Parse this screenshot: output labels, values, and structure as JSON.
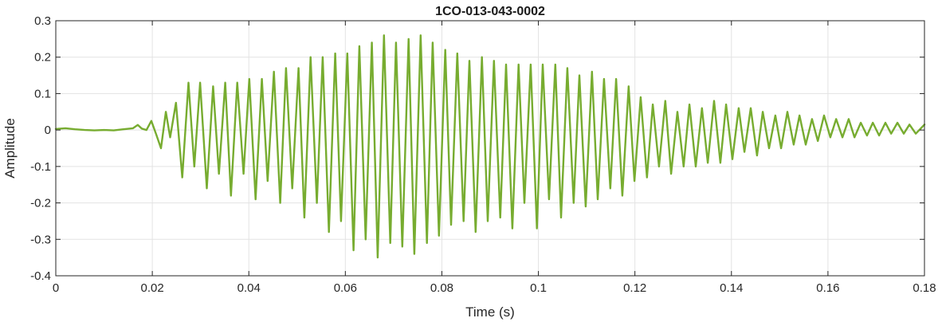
{
  "chart_data": {
    "type": "line",
    "title": "1CO-013-043-0002",
    "xlabel": "Time (s)",
    "ylabel": "Amplitude",
    "xlim": [
      0,
      0.18
    ],
    "ylim": [
      -0.4,
      0.3
    ],
    "grid": true,
    "x_ticks": [
      {
        "value": 0,
        "label": "0"
      },
      {
        "value": 0.02,
        "label": "0.02"
      },
      {
        "value": 0.04,
        "label": "0.04"
      },
      {
        "value": 0.06,
        "label": "0.06"
      },
      {
        "value": 0.08,
        "label": "0.08"
      },
      {
        "value": 0.1,
        "label": "0.1"
      },
      {
        "value": 0.12,
        "label": "0.12"
      },
      {
        "value": 0.14,
        "label": "0.14"
      },
      {
        "value": 0.16,
        "label": "0.16"
      },
      {
        "value": 0.18,
        "label": "0.18"
      }
    ],
    "y_ticks": [
      {
        "value": 0.3,
        "label": "0.3"
      },
      {
        "value": 0.2,
        "label": "0.2"
      },
      {
        "value": 0.1,
        "label": "0.1"
      },
      {
        "value": 0,
        "label": "0"
      },
      {
        "value": -0.1,
        "label": "-0.1"
      },
      {
        "value": -0.2,
        "label": "-0.2"
      },
      {
        "value": -0.3,
        "label": "-0.3"
      },
      {
        "value": -0.4,
        "label": "-0.4"
      }
    ],
    "series": [
      {
        "color": "#77ac30",
        "x": [
          0.0,
          0.002,
          0.004,
          0.006,
          0.008,
          0.01,
          0.012,
          0.014,
          0.016,
          0.017,
          0.0178,
          0.0188,
          0.0198,
          0.0208,
          0.0218,
          0.0228,
          0.0237,
          0.0249,
          0.0262,
          0.0275,
          0.0287,
          0.0299,
          0.0313,
          0.0326,
          0.0338,
          0.0351,
          0.0363,
          0.0376,
          0.0389,
          0.0401,
          0.0414,
          0.0427,
          0.0439,
          0.0452,
          0.0465,
          0.0477,
          0.049,
          0.0503,
          0.0515,
          0.0528,
          0.0541,
          0.0553,
          0.0566,
          0.0579,
          0.0591,
          0.0604,
          0.0617,
          0.0629,
          0.0642,
          0.0655,
          0.0667,
          0.068,
          0.0693,
          0.0705,
          0.0718,
          0.0731,
          0.0743,
          0.0756,
          0.0769,
          0.0781,
          0.0794,
          0.0807,
          0.0819,
          0.0832,
          0.0845,
          0.0857,
          0.087,
          0.0883,
          0.0895,
          0.0908,
          0.0921,
          0.0933,
          0.0946,
          0.0959,
          0.0971,
          0.0984,
          0.0997,
          0.1009,
          0.1022,
          0.1035,
          0.1047,
          0.106,
          0.1073,
          0.1085,
          0.1098,
          0.1111,
          0.1123,
          0.1136,
          0.1149,
          0.1161,
          0.1174,
          0.1187,
          0.1199,
          0.1212,
          0.1225,
          0.1237,
          0.125,
          0.1263,
          0.1275,
          0.1288,
          0.1301,
          0.1313,
          0.1326,
          0.1339,
          0.1351,
          0.1364,
          0.1377,
          0.1389,
          0.1402,
          0.1415,
          0.1427,
          0.144,
          0.1453,
          0.1465,
          0.1478,
          0.1491,
          0.1503,
          0.1516,
          0.1529,
          0.1541,
          0.1554,
          0.1567,
          0.1579,
          0.1592,
          0.1605,
          0.1617,
          0.163,
          0.1643,
          0.1655,
          0.1668,
          0.1681,
          0.1693,
          0.1706,
          0.1719,
          0.1731,
          0.1744,
          0.1757,
          0.1769,
          0.1782,
          0.18
        ],
        "y": [
          0.003,
          0.005,
          0.002,
          0.0,
          -0.001,
          0.0,
          -0.001,
          0.002,
          0.005,
          0.014,
          0.004,
          0.0,
          0.025,
          -0.012,
          -0.05,
          0.05,
          -0.02,
          0.075,
          -0.13,
          0.13,
          -0.1,
          0.13,
          -0.16,
          0.12,
          -0.12,
          0.13,
          -0.18,
          0.13,
          -0.12,
          0.14,
          -0.19,
          0.14,
          -0.14,
          0.16,
          -0.2,
          0.17,
          -0.16,
          0.17,
          -0.24,
          0.2,
          -0.2,
          0.2,
          -0.28,
          0.21,
          -0.25,
          0.21,
          -0.33,
          0.23,
          -0.3,
          0.24,
          -0.35,
          0.26,
          -0.31,
          0.24,
          -0.32,
          0.25,
          -0.34,
          0.26,
          -0.31,
          0.24,
          -0.29,
          0.22,
          -0.26,
          0.21,
          -0.25,
          0.19,
          -0.28,
          0.2,
          -0.25,
          0.19,
          -0.24,
          0.18,
          -0.27,
          0.18,
          -0.2,
          0.18,
          -0.27,
          0.18,
          -0.19,
          0.18,
          -0.24,
          0.17,
          -0.2,
          0.15,
          -0.21,
          0.16,
          -0.19,
          0.14,
          -0.16,
          0.14,
          -0.18,
          0.12,
          -0.14,
          0.09,
          -0.13,
          0.07,
          -0.1,
          0.08,
          -0.12,
          0.05,
          -0.1,
          0.07,
          -0.1,
          0.06,
          -0.09,
          0.08,
          -0.09,
          0.07,
          -0.08,
          0.06,
          -0.06,
          0.06,
          -0.07,
          0.05,
          -0.05,
          0.04,
          -0.05,
          0.05,
          -0.04,
          0.04,
          -0.04,
          0.03,
          -0.03,
          0.04,
          -0.02,
          0.03,
          -0.02,
          0.03,
          -0.02,
          0.02,
          -0.015,
          0.02,
          -0.015,
          0.02,
          -0.01,
          0.02,
          -0.01,
          0.015,
          -0.01,
          0.015
        ]
      }
    ]
  }
}
